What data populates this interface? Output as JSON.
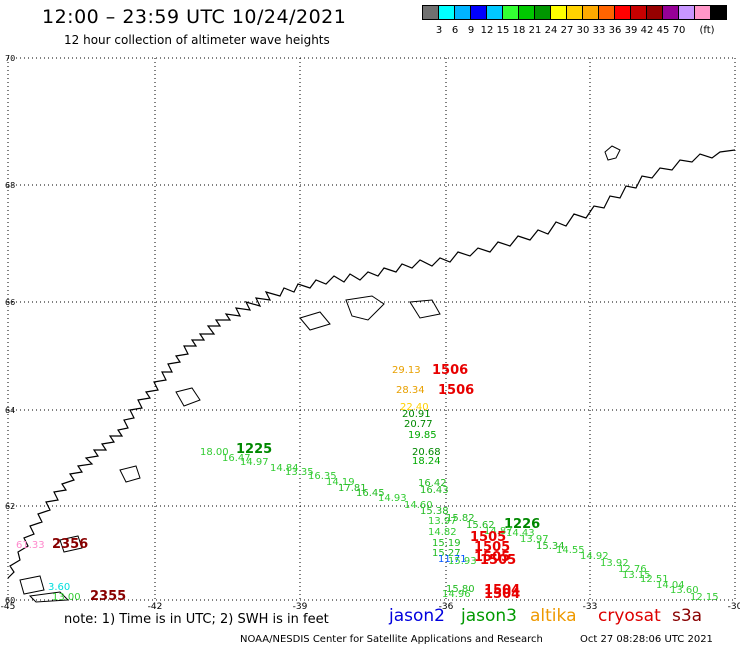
{
  "title": "12:00 – 23:59 UTC 10/24/2021",
  "subtitle": "12 hour collection of altimeter wave heights",
  "scale": {
    "unit": "(ft)",
    "colors": [
      "#707070",
      "#00ffff",
      "#00b4ff",
      "#0000ff",
      "#00c8ff",
      "#33ff33",
      "#00c800",
      "#009600",
      "#ffff00",
      "#ffd200",
      "#ffaa00",
      "#ff6400",
      "#ff0000",
      "#c80000",
      "#960000",
      "#960096",
      "#c896ff",
      "#ff96c8",
      "#000000"
    ],
    "labels": [
      "3",
      "6",
      "9",
      "12",
      "15",
      "18",
      "21",
      "24",
      "27",
      "30",
      "33",
      "36",
      "39",
      "42",
      "45",
      "70"
    ]
  },
  "axes": {
    "x_ticks": [
      "-45",
      "-42",
      "-39",
      "-36",
      "-33",
      "-30"
    ],
    "y_ticks": [
      "70",
      "68",
      "66",
      "64",
      "62",
      "60"
    ]
  },
  "observations": [
    {
      "text": "29.13",
      "color": "#e8a000",
      "size": 10,
      "bold": false
    },
    {
      "text": "1506",
      "color": "#e80000",
      "size": 13,
      "bold": true
    },
    {
      "text": "28.34",
      "color": "#e8a000",
      "size": 10,
      "bold": false
    },
    {
      "text": "1506",
      "color": "#e80000",
      "size": 13,
      "bold": true
    },
    {
      "text": "22.40",
      "color": "#ffd000",
      "size": 10,
      "bold": false
    },
    {
      "text": "20.91",
      "color": "#008800",
      "size": 10,
      "bold": false
    },
    {
      "text": "20.77",
      "color": "#008800",
      "size": 10,
      "bold": false
    },
    {
      "text": "19.85",
      "color": "#00aa00",
      "size": 10,
      "bold": false
    },
    {
      "text": "20.68",
      "color": "#008800",
      "size": 10,
      "bold": false
    },
    {
      "text": "18.24",
      "color": "#00aa00",
      "size": 10,
      "bold": false
    },
    {
      "text": "16.42",
      "color": "#22bb22",
      "size": 10,
      "bold": false
    },
    {
      "text": "16.43",
      "color": "#22bb22",
      "size": 10,
      "bold": false
    },
    {
      "text": "15.38",
      "color": "#22bb22",
      "size": 10,
      "bold": false
    },
    {
      "text": "13.97",
      "color": "#33cc33",
      "size": 10,
      "bold": false
    },
    {
      "text": "15.82",
      "color": "#22bb22",
      "size": 10,
      "bold": false
    },
    {
      "text": "15.62",
      "color": "#22bb22",
      "size": 10,
      "bold": false
    },
    {
      "text": "1226",
      "color": "#008800",
      "size": 13,
      "bold": true
    },
    {
      "text": "14.87",
      "color": "#33cc33",
      "size": 10,
      "bold": false
    },
    {
      "text": "14.43",
      "color": "#33cc33",
      "size": 10,
      "bold": false
    },
    {
      "text": "13.97",
      "color": "#33cc33",
      "size": 10,
      "bold": false
    },
    {
      "text": "15.34",
      "color": "#22bb22",
      "size": 10,
      "bold": false
    },
    {
      "text": "14.82",
      "color": "#33cc33",
      "size": 10,
      "bold": false
    },
    {
      "text": "1505",
      "color": "#e80000",
      "size": 13,
      "bold": true
    },
    {
      "text": "15.19",
      "color": "#22bb22",
      "size": 10,
      "bold": false
    },
    {
      "text": "1505",
      "color": "#e80000",
      "size": 13,
      "bold": true
    },
    {
      "text": "15.27",
      "color": "#22bb22",
      "size": 10,
      "bold": false
    },
    {
      "text": "11.71",
      "color": "#0055ff",
      "size": 10,
      "bold": false
    },
    {
      "text": "1505",
      "color": "#e80000",
      "size": 13,
      "bold": true
    },
    {
      "text": "15.93",
      "color": "#33cc33",
      "size": 10,
      "bold": false
    },
    {
      "text": "1505",
      "color": "#e80000",
      "size": 13,
      "bold": true
    },
    {
      "text": "15.80",
      "color": "#22bb22",
      "size": 10,
      "bold": false
    },
    {
      "text": "1504",
      "color": "#e80000",
      "size": 13,
      "bold": true
    },
    {
      "text": "14.96",
      "color": "#33cc33",
      "size": 10,
      "bold": false
    },
    {
      "text": "1504",
      "color": "#e80000",
      "size": 13,
      "bold": true
    },
    {
      "text": "18.00",
      "color": "#33cc33",
      "size": 10,
      "bold": false
    },
    {
      "text": "1225",
      "color": "#008800",
      "size": 13,
      "bold": true
    },
    {
      "text": "16.47",
      "color": "#33cc33",
      "size": 10,
      "bold": false
    },
    {
      "text": "14.97",
      "color": "#33cc33",
      "size": 10,
      "bold": false
    },
    {
      "text": "14.84",
      "color": "#33cc33",
      "size": 10,
      "bold": false
    },
    {
      "text": "13.35",
      "color": "#33cc33",
      "size": 10,
      "bold": false
    },
    {
      "text": "16.35",
      "color": "#33cc33",
      "size": 10,
      "bold": false
    },
    {
      "text": "14.19",
      "color": "#33cc33",
      "size": 10,
      "bold": false
    },
    {
      "text": "17.81",
      "color": "#22bb22",
      "size": 10,
      "bold": false
    },
    {
      "text": "16.45",
      "color": "#22bb22",
      "size": 10,
      "bold": false
    },
    {
      "text": "14.93",
      "color": "#33cc33",
      "size": 10,
      "bold": false
    },
    {
      "text": "14.60",
      "color": "#33cc33",
      "size": 10,
      "bold": false
    },
    {
      "text": "14.55",
      "color": "#33cc33",
      "size": 10,
      "bold": false
    },
    {
      "text": "14.92",
      "color": "#33cc33",
      "size": 10,
      "bold": false
    },
    {
      "text": "13.92",
      "color": "#33cc33",
      "size": 10,
      "bold": false
    },
    {
      "text": "12.76",
      "color": "#33cc33",
      "size": 10,
      "bold": false
    },
    {
      "text": "13.15",
      "color": "#33cc33",
      "size": 10,
      "bold": false
    },
    {
      "text": "12.51",
      "color": "#33cc33",
      "size": 10,
      "bold": false
    },
    {
      "text": "14.04",
      "color": "#33cc33",
      "size": 10,
      "bold": false
    },
    {
      "text": "13.60",
      "color": "#33cc33",
      "size": 10,
      "bold": false
    },
    {
      "text": "12.15",
      "color": "#33cc33",
      "size": 10,
      "bold": false
    },
    {
      "text": "61.33",
      "color": "#ff88cc",
      "size": 10,
      "bold": false
    },
    {
      "text": "2356",
      "color": "#880000",
      "size": 13,
      "bold": true
    },
    {
      "text": "3.60",
      "color": "#00dddd",
      "size": 10,
      "bold": false
    },
    {
      "text": "13.00",
      "color": "#33cc33",
      "size": 10,
      "bold": false
    },
    {
      "text": "2355",
      "color": "#880000",
      "size": 13,
      "bold": true
    }
  ],
  "footer": {
    "note": "note:  1) Time is in UTC;  2) SWH is in feet",
    "satellites": [
      {
        "name": "jason2",
        "color": "#0000dd"
      },
      {
        "name": "jason3",
        "color": "#009900"
      },
      {
        "name": "altika",
        "color": "#ee9900"
      },
      {
        "name": "cryosat",
        "color": "#dd0000"
      },
      {
        "name": "s3a",
        "color": "#880000"
      }
    ],
    "credit": "NOAA/NESDIS Center for Satellite Applications and Research",
    "timestamp": "Oct 27 08:28:06 UTC 2021"
  }
}
